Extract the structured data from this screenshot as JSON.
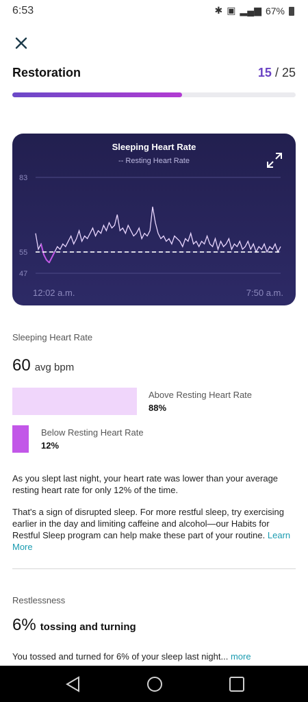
{
  "status_bar": {
    "time": "6:53",
    "battery": "67%"
  },
  "header": {
    "title": "Restoration",
    "progress_current": "15",
    "progress_sep": " / ",
    "progress_total": "25",
    "progress_fraction": 0.6
  },
  "chart_data": {
    "type": "line",
    "title": "Sleeping Heart Rate",
    "legend": "-- Resting Heart Rate",
    "ylim": [
      47,
      83
    ],
    "y_ticks": [
      83,
      55,
      47
    ],
    "x_labels": [
      "12:02 a.m.",
      "7:50 a.m."
    ],
    "resting_heart_rate": 55,
    "series": [
      {
        "values": [
          62,
          56,
          58,
          54,
          52,
          51,
          53,
          55,
          57,
          56,
          58,
          57,
          59,
          61,
          58,
          60,
          63,
          59,
          61,
          60,
          62,
          64,
          61,
          63,
          62,
          65,
          63,
          66,
          64,
          65,
          69,
          63,
          64,
          62,
          65,
          63,
          61,
          62,
          64,
          60,
          62,
          61,
          63,
          72,
          66,
          62,
          60,
          61,
          59,
          60,
          58,
          61,
          60,
          59,
          57,
          60,
          59,
          62,
          58,
          59,
          57,
          59,
          58,
          61,
          58,
          57,
          60,
          56,
          59,
          57,
          58,
          60,
          56,
          58,
          57,
          59,
          56,
          57,
          59,
          56,
          58,
          55,
          57,
          56,
          58,
          55,
          57,
          56,
          58,
          55,
          57
        ]
      }
    ],
    "grid": true,
    "colors": {
      "line": "#ead7ff",
      "below": "#c257e8",
      "resting": "#ffffff"
    }
  },
  "hr_section": {
    "label": "Sleeping Heart Rate",
    "avg_value": "60",
    "avg_unit": "avg bpm",
    "above_label": "Above Resting Heart Rate",
    "above_value": "88%",
    "above_fraction": 0.88,
    "below_label": "Below Resting Heart Rate",
    "below_value": "12%",
    "below_fraction": 0.12
  },
  "description": {
    "para1": "As you slept last night, your heart rate was lower than your average resting heart rate for only 12% of the time.",
    "para2": "That's a sign of disrupted sleep. For more restful sleep, try exercising earlier in the day and limiting caffeine and alcohol—our Habits for Restful Sleep program can help make these part of your routine.",
    "learn_more": "Learn More"
  },
  "restlessness": {
    "label": "Restlessness",
    "value": "6%",
    "desc": "tossing and turning",
    "text": "You tossed and turned for 6% of your sleep last night...",
    "more": "more"
  },
  "icons": {
    "close": "close-icon",
    "expand": "expand-icon",
    "back": "back-icon",
    "home": "home-icon",
    "recents": "recents-icon"
  }
}
